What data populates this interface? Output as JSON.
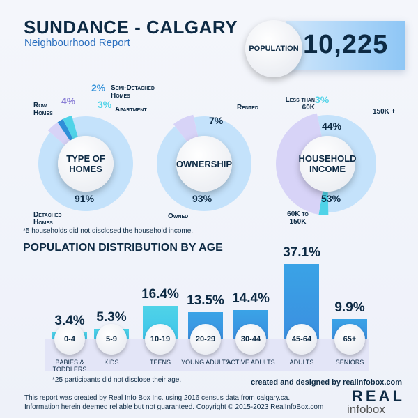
{
  "header": {
    "title": "SUNDANCE - CALGARY",
    "subtitle": "Neighbourhood Report",
    "population_label": "POPULATION",
    "population": "10,225"
  },
  "colors": {
    "navy": "#0d2a44",
    "light_blue": "#bfe0fb",
    "lavender": "#d7d3f7",
    "cyan": "#4fd3e8",
    "blue": "#2f8fd8"
  },
  "chart_data": [
    {
      "type": "pie",
      "title": "TYPE OF HOMES",
      "slices": [
        {
          "label": "Detached Homes",
          "value": 91,
          "pct": "91%",
          "color": "#c4e2fb"
        },
        {
          "label": "Row Homes",
          "value": 4,
          "pct": "4%",
          "color": "#d7d3f7"
        },
        {
          "label": "Semi-Detached Homes",
          "value": 2,
          "pct": "2%",
          "color": "#2f8fd8"
        },
        {
          "label": "Apartment",
          "value": 3,
          "pct": "3%",
          "color": "#4fd3e8"
        }
      ]
    },
    {
      "type": "pie",
      "title": "OWNERSHIP",
      "slices": [
        {
          "label": "Owned",
          "value": 93,
          "pct": "93%",
          "color": "#c4e2fb"
        },
        {
          "label": "Rented",
          "value": 7,
          "pct": "7%",
          "color": "#d7d3f7"
        }
      ]
    },
    {
      "type": "pie",
      "title": "HOUSEHOLD INCOME",
      "slices": [
        {
          "label": "60K to 150K",
          "value": 53,
          "pct": "53%",
          "color": "#c4e2fb"
        },
        {
          "label": "Less than 60K",
          "value": 3,
          "pct": "3%",
          "color": "#4fd3e8"
        },
        {
          "label": "150K +",
          "value": 44,
          "pct": "44%",
          "color": "#d7d3f7"
        }
      ]
    },
    {
      "type": "bar",
      "title": "POPULATION DISTRIBUTION BY AGE",
      "categories": [
        "0-4",
        "5-9",
        "10-19",
        "20-29",
        "30-44",
        "45-64",
        "65+"
      ],
      "group_labels": [
        "BABIES & TODDLERS",
        "KIDS",
        "TEENS",
        "YOUNG ADULTS",
        "ACTIVE ADULTS",
        "ADULTS",
        "SENIORS"
      ],
      "values": [
        3.4,
        5.3,
        16.4,
        13.5,
        14.4,
        37.1,
        9.9
      ],
      "value_labels": [
        "3.4%",
        "5.3%",
        "16.4%",
        "13.5%",
        "14.4%",
        "37.1%",
        "9.9%"
      ]
    }
  ],
  "notes": {
    "income": "*5 households did not disclosed the household income.",
    "age": "*25 participants did not disclose their age."
  },
  "footer": {
    "credit": "created and designed by realinfobox.com",
    "disclaimer": "This report was created by Real Info Box Inc. using 2016 census data from calgary.ca. Information herein deemed reliable but not guaranteed. Copyright © 2015-2023 RealInfoBox.com",
    "logo_top": "REAL",
    "logo_bottom": "infobox"
  }
}
